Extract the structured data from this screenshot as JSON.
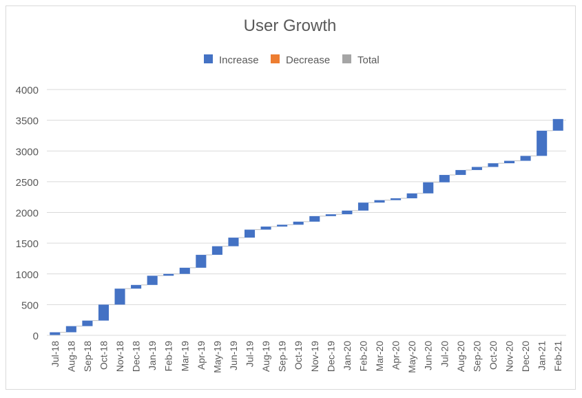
{
  "chart_data": {
    "type": "waterfall",
    "title": "User Growth",
    "legend": [
      "Increase",
      "Decrease",
      "Total"
    ],
    "legend_position": "top",
    "colors": {
      "Increase": "#4472c4",
      "Decrease": "#ed7d31",
      "Total": "#a5a5a5"
    },
    "categories": [
      "Jul-18",
      "Aug-18",
      "Sep-18",
      "Oct-18",
      "Nov-18",
      "Dec-18",
      "Jan-19",
      "Feb-19",
      "Mar-19",
      "Apr-19",
      "May-19",
      "Jun-19",
      "Jul-19",
      "Aug-19",
      "Sep-19",
      "Oct-19",
      "Nov-19",
      "Dec-19",
      "Jan-20",
      "Feb-20",
      "Mar-20",
      "Apr-20",
      "May-20",
      "Jun-20",
      "Jul-20",
      "Aug-20",
      "Sep-20",
      "Oct-20",
      "Nov-20",
      "Dec-20",
      "Jan-21",
      "Feb-21"
    ],
    "values": [
      50,
      100,
      90,
      260,
      260,
      60,
      150,
      30,
      100,
      210,
      140,
      140,
      130,
      50,
      30,
      50,
      90,
      30,
      60,
      130,
      40,
      30,
      80,
      180,
      120,
      80,
      50,
      60,
      40,
      80,
      410,
      190
    ],
    "ylim": [
      0,
      4000
    ],
    "yticks": [
      0,
      500,
      1000,
      1500,
      2000,
      2500,
      3000,
      3500,
      4000
    ],
    "grid": true,
    "xlabel": "",
    "ylabel": ""
  }
}
